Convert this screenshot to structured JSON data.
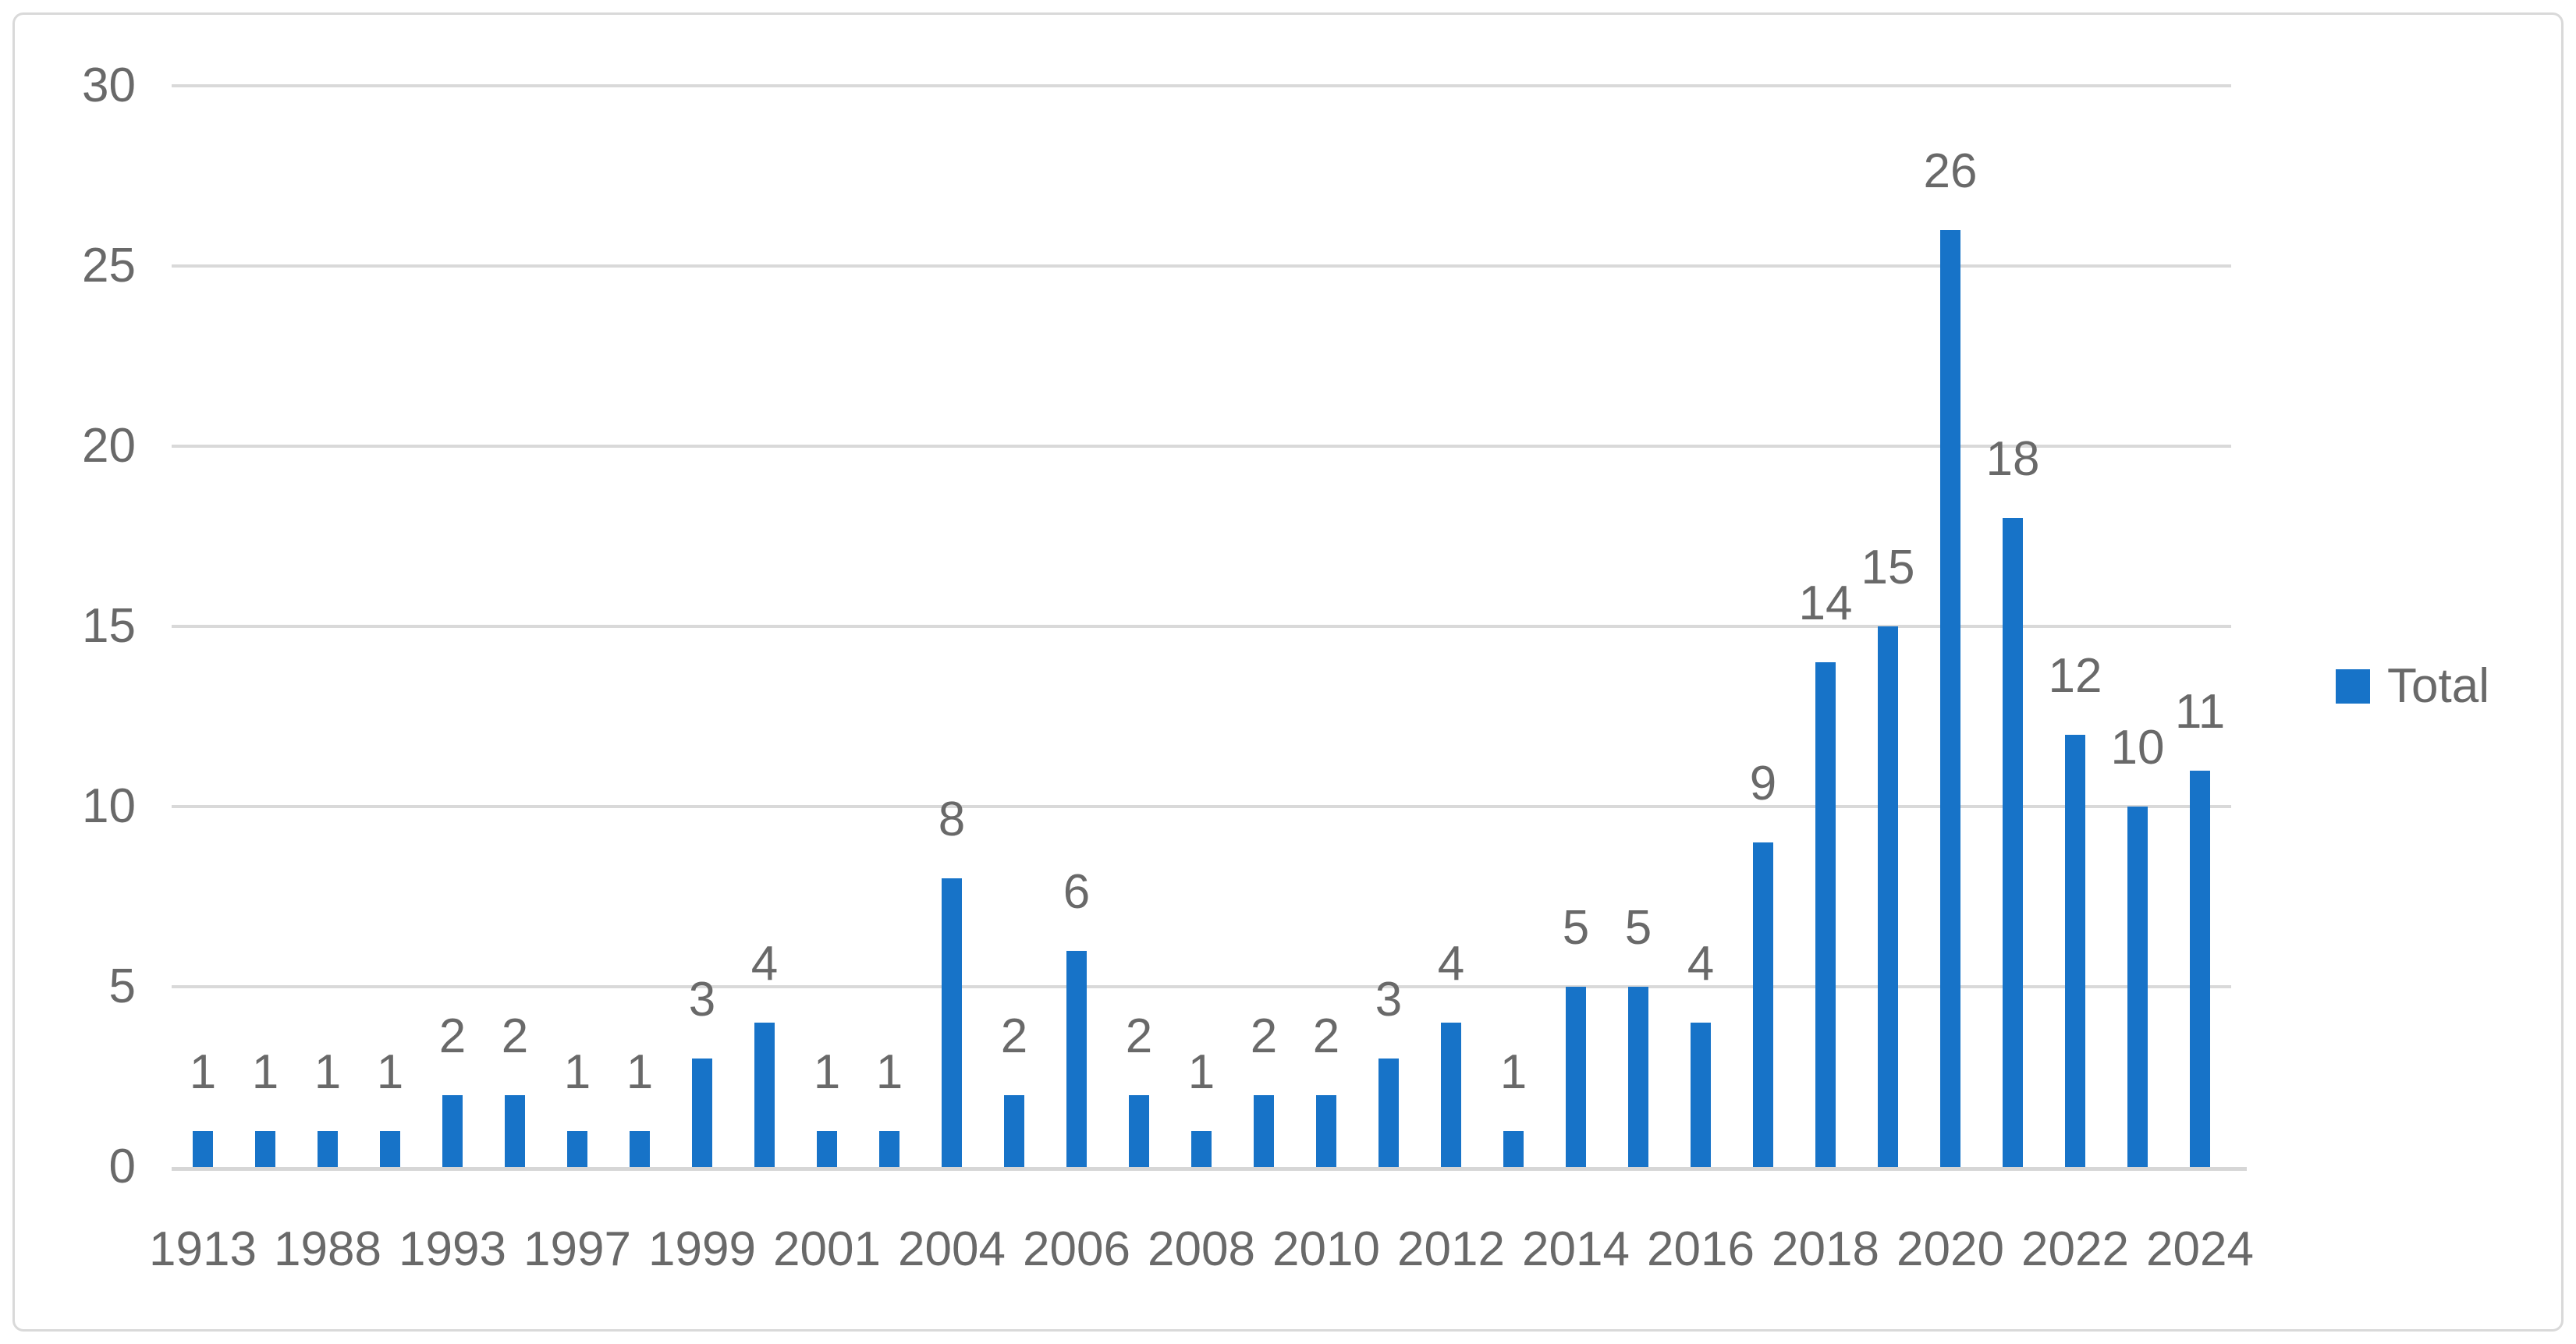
{
  "chart_data": {
    "type": "bar",
    "title": "",
    "series": [
      {
        "name": "Total",
        "values": [
          1,
          1,
          1,
          1,
          2,
          2,
          1,
          1,
          3,
          4,
          1,
          1,
          8,
          2,
          6,
          2,
          1,
          2,
          2,
          3,
          4,
          1,
          5,
          5,
          4,
          9,
          14,
          15,
          26,
          18,
          12,
          10,
          11
        ]
      }
    ],
    "data_labels": [
      "1",
      "1",
      "1",
      "1",
      "2",
      "2",
      "1",
      "1",
      "3",
      "4",
      "1",
      "1",
      "8",
      "2",
      "6",
      "2",
      "1",
      "2",
      "2",
      "3",
      "4",
      "1",
      "5",
      "5",
      "4",
      "9",
      "14",
      "15",
      "26",
      "18",
      "12",
      "10",
      "11"
    ],
    "x_tick_labels": [
      "1913",
      "1988",
      "1993",
      "1997",
      "1999",
      "2001",
      "2004",
      "2006",
      "2008",
      "2010",
      "2012",
      "2014",
      "2016",
      "2018",
      "2020",
      "2022",
      "2024"
    ],
    "x_tick_every": 2,
    "y_ticks": [
      "0",
      "5",
      "10",
      "15",
      "20",
      "25",
      "30"
    ],
    "ylim": [
      0,
      30
    ],
    "grid": "horizontal",
    "legend": {
      "label": "Total",
      "position": "right"
    },
    "colors": {
      "bar": "#1773c8",
      "gridline": "#d9d9d9",
      "axis_line": "#d6d6d6",
      "text": "#696969",
      "frame_border": "#d9d9d9",
      "background": "#ffffff"
    }
  }
}
